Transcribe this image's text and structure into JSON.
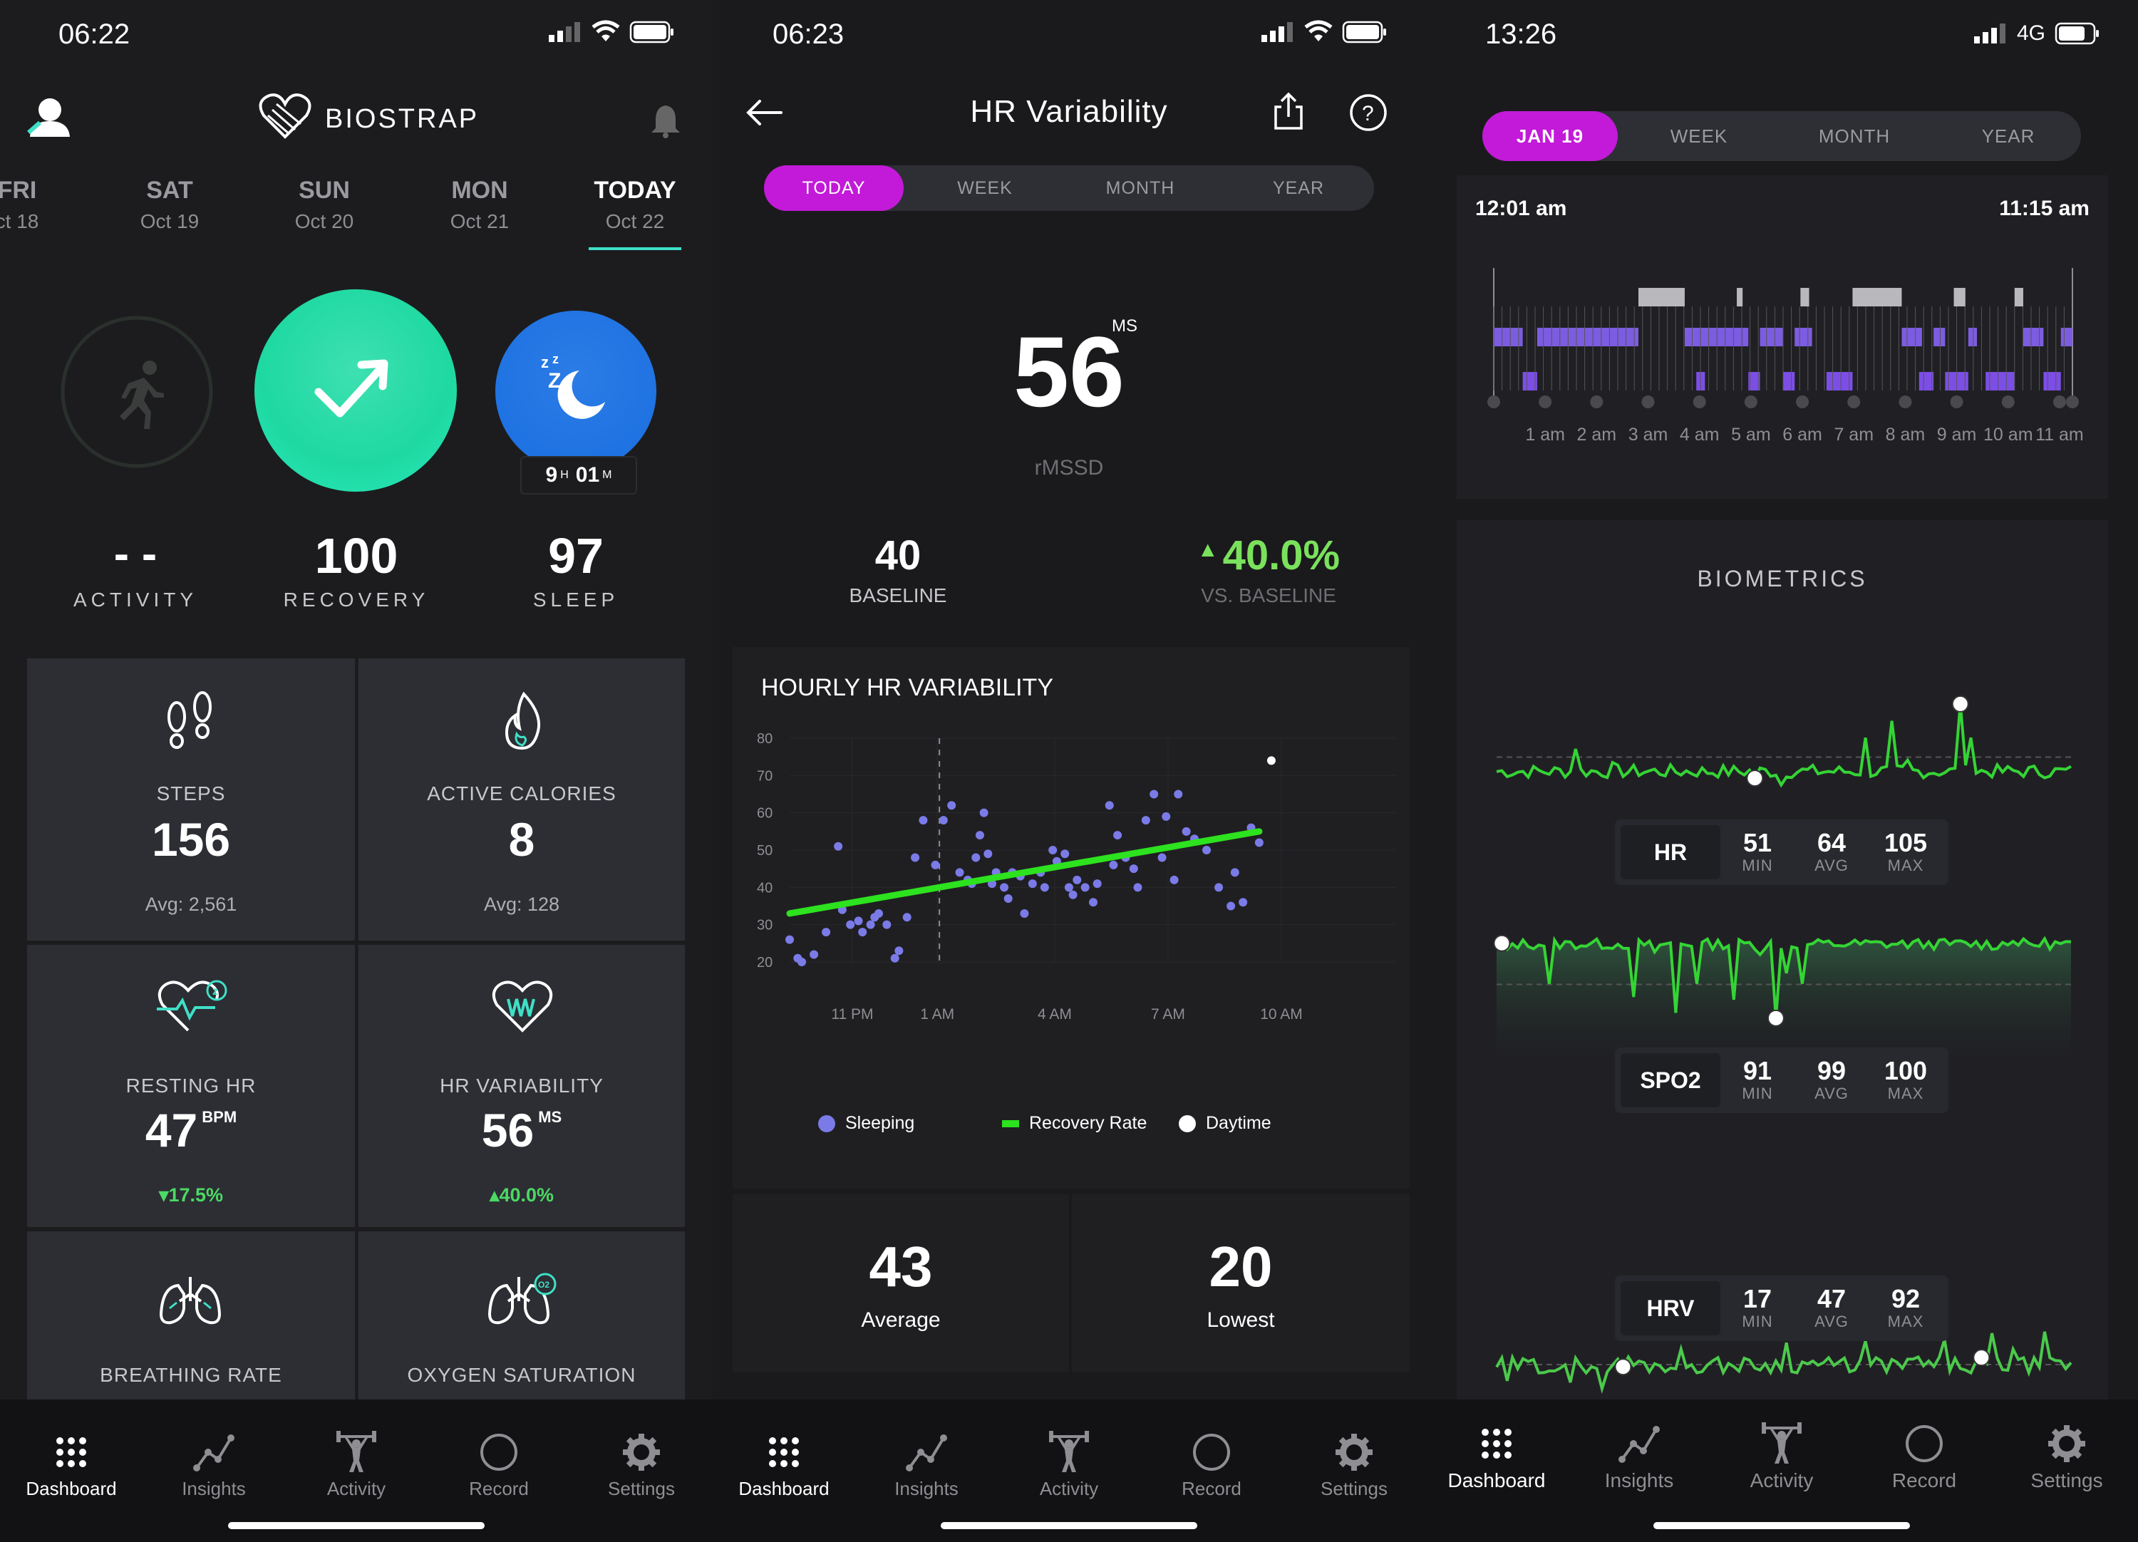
{
  "screen1": {
    "status_time": "06:22",
    "app_title": "BIOSTRAP",
    "days": [
      {
        "day": "FRI",
        "date": "ct 18"
      },
      {
        "day": "SAT",
        "date": "Oct 19"
      },
      {
        "day": "SUN",
        "date": "Oct 20"
      },
      {
        "day": "MON",
        "date": "Oct 21"
      },
      {
        "day": "TODAY",
        "date": "Oct 22"
      }
    ],
    "rings": {
      "activity": {
        "value": "- -",
        "label": "ACTIVITY"
      },
      "recovery": {
        "value": "100",
        "label": "RECOVERY"
      },
      "sleep": {
        "value": "97",
        "label": "SLEEP",
        "duration_h": "9",
        "h_unit": "H",
        "duration_m": "01",
        "m_unit": "M"
      }
    },
    "tiles": [
      {
        "label": "STEPS",
        "value": "156",
        "sub": "Avg: 2,561"
      },
      {
        "label": "ACTIVE CALORIES",
        "value": "8",
        "sub": "Avg: 128"
      },
      {
        "label": "RESTING HR",
        "value": "47",
        "unit": "BPM",
        "sub": "▾17.5%"
      },
      {
        "label": "HR VARIABILITY",
        "value": "56",
        "unit": "MS",
        "sub": "▴40.0%"
      },
      {
        "label": "BREATHING RATE"
      },
      {
        "label": "OXYGEN SATURATION"
      }
    ]
  },
  "screen2": {
    "status_time": "06:23",
    "title": "HR Variability",
    "segments": [
      "TODAY",
      "WEEK",
      "MONTH",
      "YEAR"
    ],
    "active_segment": "TODAY",
    "metric": {
      "value": "56",
      "unit": "MS",
      "label": "rMSSD"
    },
    "baseline": {
      "value": "40",
      "label": "BASELINE"
    },
    "vs_baseline": {
      "value": "40.0%",
      "label": "VS. BASELINE"
    },
    "chart_title": "HOURLY HR VARIABILITY",
    "legend": [
      "Sleeping",
      "Recovery Rate",
      "Daytime"
    ],
    "stats": [
      {
        "value": "43",
        "label": "Average"
      },
      {
        "value": "20",
        "label": "Lowest"
      }
    ]
  },
  "screen3": {
    "status_time": "13:26",
    "network": "4G",
    "segments": [
      "JAN 19",
      "WEEK",
      "MONTH",
      "YEAR"
    ],
    "active_segment": "JAN 19",
    "timeline_start": "12:01 am",
    "timeline_end": "11:15 am",
    "section_title": "BIOMETRICS",
    "hr": {
      "name": "HR",
      "min": "51",
      "avg": "64",
      "max": "105"
    },
    "spo2": {
      "name": "SPO2",
      "min": "91",
      "avg": "99",
      "max": "100"
    },
    "hrv": {
      "name": "HRV",
      "min": "17",
      "avg": "47",
      "max": "92"
    },
    "min_label": "MIN",
    "avg_label": "AVG",
    "max_label": "MAX"
  },
  "chart_data": [
    {
      "type": "scatter",
      "title": "HOURLY HR VARIABILITY",
      "x_ticks": [
        "11 PM",
        "1 AM",
        "4 AM",
        "7 AM",
        "10 AM"
      ],
      "y_ticks": [
        80,
        70,
        60,
        50,
        40,
        30,
        20
      ],
      "ylim": [
        20,
        80
      ],
      "series": [
        {
          "name": "Sleeping",
          "color": "#7b7be8",
          "points": [
            [
              0.0,
              26
            ],
            [
              0.2,
              21
            ],
            [
              0.3,
              20
            ],
            [
              0.6,
              22
            ],
            [
              0.9,
              28
            ],
            [
              1.2,
              51
            ],
            [
              1.3,
              34
            ],
            [
              1.5,
              30
            ],
            [
              1.7,
              31
            ],
            [
              1.8,
              28
            ],
            [
              2.0,
              30
            ],
            [
              2.1,
              32
            ],
            [
              2.2,
              33
            ],
            [
              2.4,
              30
            ],
            [
              2.6,
              21
            ],
            [
              2.7,
              23
            ],
            [
              2.9,
              32
            ],
            [
              3.1,
              48
            ],
            [
              3.3,
              58
            ],
            [
              3.6,
              46
            ],
            [
              3.8,
              58
            ],
            [
              4.0,
              62
            ],
            [
              4.2,
              44
            ],
            [
              4.4,
              42
            ],
            [
              4.5,
              41
            ],
            [
              4.6,
              48
            ],
            [
              4.7,
              54
            ],
            [
              4.8,
              60
            ],
            [
              4.9,
              49
            ],
            [
              5.0,
              41
            ],
            [
              5.1,
              44
            ],
            [
              5.3,
              40
            ],
            [
              5.4,
              37
            ],
            [
              5.5,
              44
            ],
            [
              5.7,
              43
            ],
            [
              5.8,
              33
            ],
            [
              6.0,
              41
            ],
            [
              6.2,
              44
            ],
            [
              6.3,
              40
            ],
            [
              6.5,
              50
            ],
            [
              6.6,
              47
            ],
            [
              6.8,
              49
            ],
            [
              6.9,
              40
            ],
            [
              7.0,
              38
            ],
            [
              7.1,
              42
            ],
            [
              7.3,
              40
            ],
            [
              7.5,
              36
            ],
            [
              7.6,
              41
            ],
            [
              7.9,
              62
            ],
            [
              8.0,
              46
            ],
            [
              8.1,
              54
            ],
            [
              8.3,
              48
            ],
            [
              8.5,
              45
            ],
            [
              8.6,
              40
            ],
            [
              8.8,
              58
            ],
            [
              9.0,
              65
            ],
            [
              9.2,
              48
            ],
            [
              9.3,
              59
            ],
            [
              9.5,
              42
            ],
            [
              9.6,
              65
            ],
            [
              9.8,
              55
            ],
            [
              10.0,
              53
            ],
            [
              10.3,
              50
            ],
            [
              10.6,
              40
            ],
            [
              10.9,
              35
            ],
            [
              11.0,
              44
            ],
            [
              11.2,
              36
            ],
            [
              11.4,
              56
            ],
            [
              11.6,
              52
            ]
          ]
        },
        {
          "name": "Recovery Rate",
          "color": "#2de21e",
          "type": "line",
          "points": [
            [
              0.0,
              33
            ],
            [
              11.6,
              55
            ]
          ]
        },
        {
          "name": "Daytime",
          "color": "#ffffff",
          "points": [
            [
              11.9,
              74
            ]
          ]
        }
      ]
    },
    {
      "type": "line",
      "title": "HR",
      "x_ticks": [
        "1 am",
        "2 am",
        "3 am",
        "4 am",
        "5 am",
        "6 am",
        "7 am",
        "8 am",
        "9 am",
        "10 am",
        "11 am"
      ],
      "series": [
        {
          "name": "HR",
          "color": "#35d435"
        }
      ]
    },
    {
      "type": "line",
      "title": "SPO2",
      "series": [
        {
          "name": "SPO2",
          "color": "#35d435"
        }
      ]
    },
    {
      "type": "line",
      "title": "HRV",
      "series": [
        {
          "name": "HRV",
          "color": "#35d435"
        }
      ]
    }
  ]
}
